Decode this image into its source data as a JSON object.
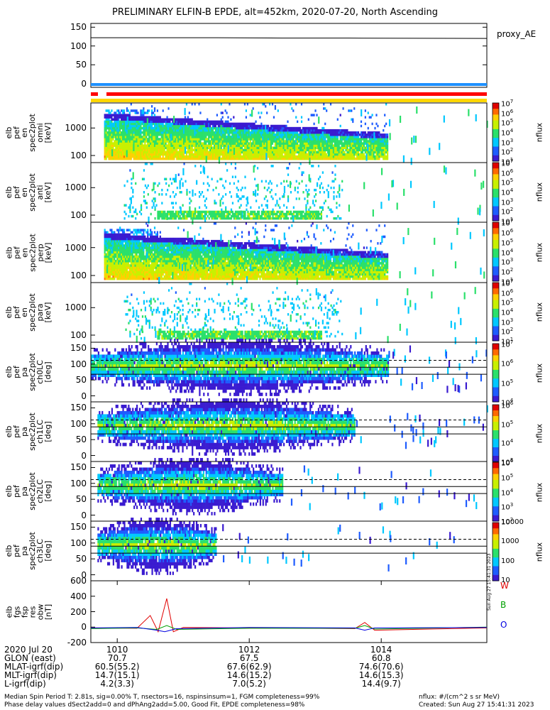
{
  "title": "PRELIMINARY ELFIN-B EPDE, alt=452km, 2020-07-20, North Ascending",
  "colors": {
    "red": "#ff0000",
    "blue": "#1e90ff",
    "yellow": "#ffd700"
  },
  "chart_data": [
    {
      "type": "line",
      "panel": "proxy_ae",
      "ylabel": [
        "proxy_ae",
        "[nT]"
      ],
      "yticks": [
        "150",
        "100",
        "50",
        "0"
      ],
      "ylim": [
        -10,
        160
      ],
      "legend": "proxy_AE",
      "series": [
        {
          "name": "proxy_AE",
          "x": [
            1009.6,
            1011.5,
            1012.5,
            1013.5,
            1015.6
          ],
          "y": [
            122,
            122,
            121,
            121,
            120
          ]
        }
      ]
    },
    {
      "type": "heatmap",
      "panel": "en_spec2plot_omni",
      "ylabel": [
        "elb",
        "pef",
        "en",
        "spec2plot",
        "omni",
        "[keV]"
      ],
      "yticks": [
        "1000",
        "100"
      ],
      "cbar_label": "nflux",
      "cbar_ticks": [
        "10^7",
        "10^6",
        "10^5",
        "10^4",
        "10^3",
        "10^2",
        "10^1"
      ],
      "extent": [
        1009.8,
        1014.1
      ]
    },
    {
      "type": "heatmap",
      "panel": "en_spec2plot_anti",
      "ylabel": [
        "elb",
        "pef",
        "en",
        "spec2plot",
        "anti",
        "[keV]"
      ],
      "yticks": [
        "1000",
        "100"
      ],
      "cbar_label": "nflux",
      "cbar_ticks": [
        "10^7",
        "10^6",
        "10^5",
        "10^4",
        "10^3",
        "10^2",
        "10^1"
      ],
      "extent": [
        1010.1,
        1013.4
      ]
    },
    {
      "type": "heatmap",
      "panel": "en_spec2plot_perp",
      "ylabel": [
        "elb",
        "pef",
        "en",
        "spec2plot",
        "perp",
        "[keV]"
      ],
      "yticks": [
        "1000",
        "100"
      ],
      "cbar_label": "nflux",
      "cbar_ticks": [
        "10^7",
        "10^6",
        "10^5",
        "10^4",
        "10^3",
        "10^2",
        "10^1"
      ],
      "extent": [
        1009.8,
        1014.1
      ]
    },
    {
      "type": "heatmap",
      "panel": "en_spec2plot_para",
      "ylabel": [
        "elb",
        "pef",
        "en",
        "spec2plot",
        "para",
        "[keV]"
      ],
      "yticks": [
        "1000",
        "100"
      ],
      "cbar_label": "nflux",
      "cbar_ticks": [
        "10^7",
        "10^6",
        "10^5",
        "10^4",
        "10^3",
        "10^2",
        "10^1"
      ],
      "extent": [
        1010.1,
        1013.4
      ]
    },
    {
      "type": "heatmap",
      "panel": "pa_spec2plot_ch0LC",
      "ylabel": [
        "elb",
        "pef",
        "pa",
        "spec2plot",
        "ch0LC",
        "[deg]"
      ],
      "yticks": [
        "150",
        "100",
        "50",
        "0"
      ],
      "cbar_label": "nflux",
      "cbar_ticks": [
        "10^7",
        "10^6",
        "10^5",
        "10^4"
      ],
      "extent": [
        1009.6,
        1014.1
      ]
    },
    {
      "type": "heatmap",
      "panel": "pa_spec2plot_ch1LC",
      "ylabel": [
        "elb",
        "pef",
        "pa",
        "spec2plot",
        "ch1LC",
        "[deg]"
      ],
      "yticks": [
        "150",
        "100",
        "50",
        "0"
      ],
      "cbar_label": "nflux",
      "cbar_ticks": [
        "10^6",
        "10^5",
        "10^4",
        "10^3"
      ],
      "extent": [
        1009.7,
        1013.6
      ]
    },
    {
      "type": "heatmap",
      "panel": "pa_spec2plot_ch2LC",
      "ylabel": [
        "elb",
        "pef",
        "pa",
        "spec2plot",
        "ch2LC",
        "[deg]"
      ],
      "yticks": [
        "150",
        "100",
        "50",
        "0"
      ],
      "cbar_label": "nflux",
      "cbar_ticks": [
        "10^6",
        "10^5",
        "10^4",
        "10^3",
        "10^2"
      ],
      "extent": [
        1009.7,
        1012.5
      ]
    },
    {
      "type": "heatmap",
      "panel": "pa_spec2plot_ch3LC",
      "ylabel": [
        "elb",
        "pef",
        "pa",
        "spec2plot",
        "ch3LC",
        "[deg]"
      ],
      "yticks": [
        "150",
        "100",
        "50",
        "0"
      ],
      "cbar_label": "nflux",
      "cbar_ticks": [
        "10000",
        "1000",
        "100",
        "10"
      ],
      "extent": [
        1009.7,
        1011.5
      ]
    },
    {
      "type": "line",
      "panel": "fgs_fsp_res_obw",
      "ylabel": [
        "elb",
        "fgs",
        "fsp",
        "res",
        "obw",
        "[nT]"
      ],
      "yticks": [
        "600",
        "400",
        "200",
        "0",
        "-200"
      ],
      "ylim": [
        -200,
        600
      ],
      "legend": [
        "W",
        "B",
        "O"
      ],
      "series": [
        {
          "name": "W",
          "x": [
            1009.6,
            1010.3,
            1010.5,
            1010.62,
            1010.75,
            1010.85,
            1011.0,
            1012.0,
            1013.6,
            1013.75,
            1013.9,
            1015.6
          ],
          "y": [
            -10,
            -15,
            150,
            -60,
            370,
            -60,
            -5,
            -10,
            -20,
            60,
            -40,
            -10
          ]
        },
        {
          "name": "B",
          "x": [
            1009.6,
            1010.3,
            1010.6,
            1010.75,
            1010.9,
            1012.0,
            1013.6,
            1013.75,
            1013.9,
            1015.6
          ],
          "y": [
            -20,
            -10,
            -30,
            20,
            -30,
            -15,
            -15,
            20,
            -25,
            0
          ]
        },
        {
          "name": "O",
          "x": [
            1009.6,
            1010.3,
            1010.6,
            1010.72,
            1010.9,
            1012.0,
            1013.6,
            1013.75,
            1013.9,
            1015.6
          ],
          "y": [
            -10,
            -5,
            -40,
            -60,
            -20,
            -5,
            -10,
            -40,
            -10,
            -5
          ]
        }
      ]
    }
  ],
  "orbit": {
    "rows": [
      {
        "label": "2020 Jul 20",
        "values": [
          "1010",
          "1012",
          "1014"
        ]
      },
      {
        "label": "GLON (east)",
        "values": [
          "70.7",
          "67.5",
          "60.8"
        ]
      },
      {
        "label": "MLAT-igrf(dip)",
        "values": [
          "60.5(55.2)",
          "67.6(62.9)",
          "74.6(70.6)"
        ]
      },
      {
        "label": "MLT-igrf(dip)",
        "values": [
          "14.7(15.1)",
          "14.6(15.2)",
          "14.6(15.3)"
        ]
      },
      {
        "label": "L-igrf(dip)",
        "values": [
          "4.2(3.3)",
          "7.0(5.2)",
          "14.4(9.7)"
        ]
      }
    ]
  },
  "footer": {
    "line1": "Median Spin Period T: 2.81s, sig=0.00% T, nsectors=16, nspinsinsum=1, FGM completeness=99%",
    "line2": "Phase delay values dSect2add=0 and dPhAng2add=5.00, Good Fit, EPDE completeness=98%",
    "units": "nflux: #/(cm^2 s sr MeV)",
    "created": "Created: Sun Aug 27 15:41:31 2023",
    "stamp": "Sun Aug 27 15:41:31 2023"
  }
}
